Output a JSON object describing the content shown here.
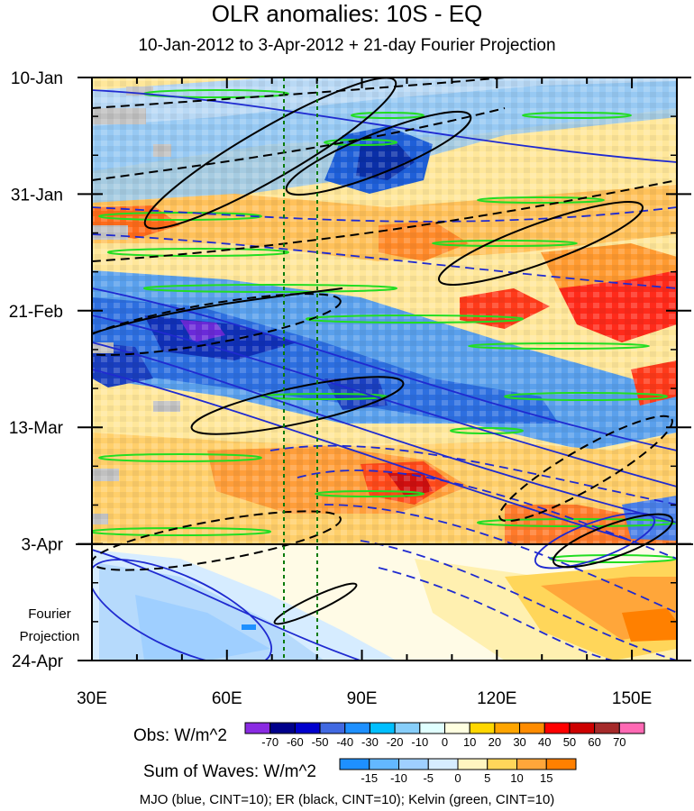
{
  "title": "OLR anomalies: 10S - EQ",
  "subtitle": "10-Jan-2012 to 3-Apr-2012 + 21-day Fourier Projection",
  "footer": "MJO (blue, CINT=10); ER (black, CINT=10); Kelvin (green, CINT=10)",
  "projection_label": [
    "Fourier",
    "Projection"
  ],
  "obs_label": "Obs: W/m^2",
  "waves_label": "Sum of Waves: W/m^2",
  "chart_data": {
    "type": "heatmap",
    "title": "OLR anomalies: 10S - EQ",
    "subtitle": "10-Jan-2012 to 3-Apr-2012 + 21-day Fourier Projection",
    "x_ticks": [
      "30E",
      "60E",
      "90E",
      "120E",
      "150E"
    ],
    "x_tick_values": [
      30,
      60,
      90,
      120,
      150
    ],
    "xlim": [
      30,
      160
    ],
    "y_ticks": [
      "10-Jan",
      "31-Jan",
      "21-Feb",
      "13-Mar",
      "3-Apr",
      "24-Apr"
    ],
    "y_tick_values": [
      "2012-01-10",
      "2012-01-31",
      "2012-02-21",
      "2012-03-13",
      "2012-04-03",
      "2012-04-24"
    ],
    "ylim": [
      "2012-01-10",
      "2012-04-24"
    ],
    "observation_end": "2012-04-03",
    "reference_lines_lon": [
      72.5,
      80
    ],
    "obs_colorbar": {
      "units": "W/m^2",
      "levels": [
        -70,
        -60,
        -50,
        -40,
        -30,
        -20,
        -10,
        0,
        10,
        20,
        30,
        40,
        50,
        60,
        70
      ],
      "colors": [
        "#8a2be2",
        "#00008b",
        "#0000cd",
        "#4169e1",
        "#1e90ff",
        "#00bfff",
        "#87cefa",
        "#e0ffff",
        "#ffffe0",
        "#ffd700",
        "#ffa500",
        "#ff8c00",
        "#ff0000",
        "#cd0000",
        "#a52a2a",
        "#ff69b4"
      ]
    },
    "waves_colorbar": {
      "units": "W/m^2",
      "levels": [
        -15,
        -10,
        -5,
        0,
        5,
        10,
        15
      ],
      "colors": [
        "#1e90ff",
        "#63b8ff",
        "#9fcfff",
        "#d6ecff",
        "#fff5c0",
        "#ffd65a",
        "#ffa63a",
        "#ff8000"
      ]
    },
    "contour_series": [
      {
        "name": "MJO",
        "color": "blue",
        "cint": 10
      },
      {
        "name": "ER",
        "color": "black",
        "cint": 10
      },
      {
        "name": "Kelvin",
        "color": "green",
        "cint": 10
      }
    ]
  }
}
